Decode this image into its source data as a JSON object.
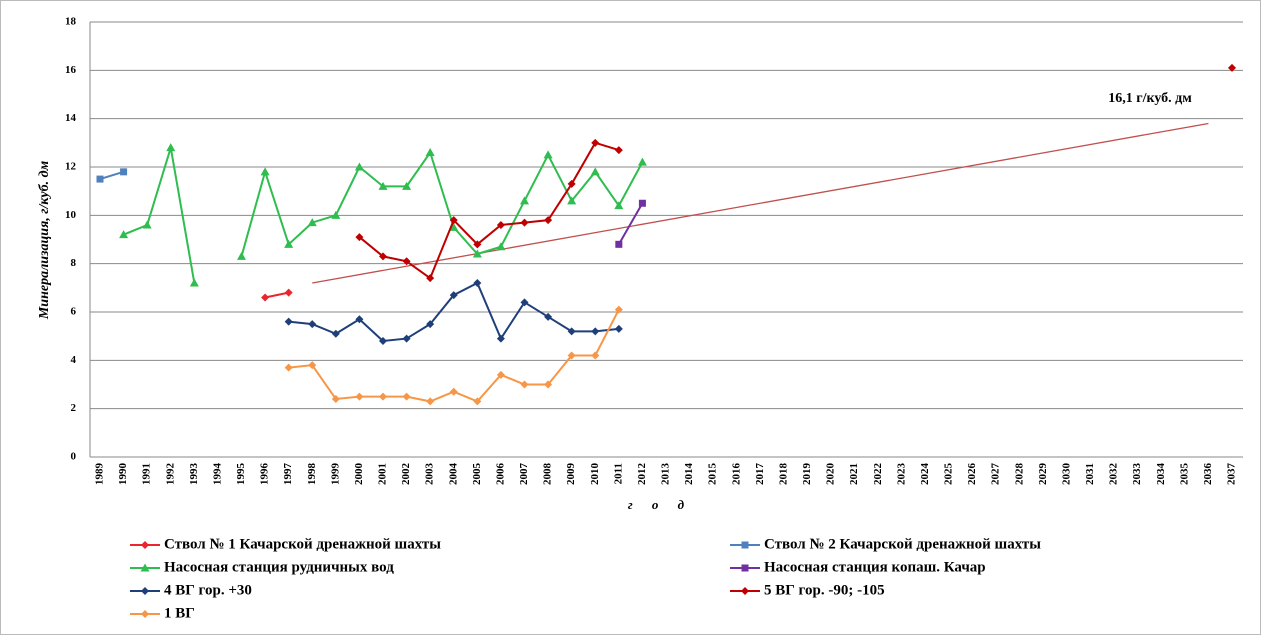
{
  "chart_data": {
    "type": "line",
    "y_label": "Минерализация, г/куб. дм",
    "x_label": "г о д",
    "annotation": "16,1 г/куб. дм",
    "categories": [
      "1989",
      "1990",
      "1991",
      "1992",
      "1993",
      "1994",
      "1995",
      "1996",
      "1997",
      "1998",
      "1999",
      "2000",
      "2001",
      "2002",
      "2003",
      "2004",
      "2005",
      "2006",
      "2007",
      "2008",
      "2009",
      "2010",
      "2011",
      "2012",
      "2013",
      "2014",
      "2015",
      "2016",
      "2017",
      "2018",
      "2019",
      "2020",
      "2021",
      "2022",
      "2023",
      "2024",
      "2025",
      "2026",
      "2027",
      "2028",
      "2029",
      "2030",
      "2031",
      "2032",
      "2033",
      "2034",
      "2035",
      "2036",
      "2037"
    ],
    "ylim": [
      0,
      18
    ],
    "yticks": [
      0,
      2,
      4,
      6,
      8,
      10,
      12,
      14,
      16,
      18
    ],
    "grid": true,
    "legend": "bottom",
    "series": [
      {
        "name": "Ствол № 1 Качарской дренажной шахты",
        "color": "#e8262b",
        "marker": "diamond",
        "values": [
          null,
          null,
          null,
          null,
          null,
          null,
          null,
          6.6,
          6.8,
          null,
          null,
          null,
          null,
          null,
          null,
          null,
          null,
          null,
          null,
          null,
          null,
          null,
          null,
          null,
          null,
          null,
          null,
          null,
          null,
          null,
          null,
          null,
          null,
          null,
          null,
          null,
          null,
          null,
          null,
          null,
          null,
          null,
          null,
          null,
          null,
          null,
          null,
          null,
          null
        ]
      },
      {
        "name": "Ствол № 2 Качарской дренажной шахты",
        "color": "#4f81bd",
        "marker": "square",
        "values": [
          11.5,
          11.8,
          null,
          null,
          null,
          null,
          null,
          null,
          null,
          null,
          null,
          null,
          null,
          null,
          null,
          null,
          null,
          null,
          null,
          null,
          null,
          null,
          null,
          null,
          null,
          null,
          null,
          null,
          null,
          null,
          null,
          null,
          null,
          null,
          null,
          null,
          null,
          null,
          null,
          null,
          null,
          null,
          null,
          null,
          null,
          null,
          null,
          null,
          null
        ]
      },
      {
        "name": "Насосная станция рудничных вод",
        "color": "#2ebd4e",
        "marker": "triangle",
        "values": [
          null,
          9.2,
          9.6,
          12.8,
          7.2,
          null,
          8.3,
          11.8,
          8.8,
          9.7,
          10.0,
          12.0,
          11.2,
          11.2,
          12.6,
          9.5,
          8.4,
          8.7,
          10.6,
          12.5,
          10.6,
          11.8,
          10.4,
          12.2,
          null,
          null,
          null,
          null,
          null,
          null,
          null,
          null,
          null,
          null,
          null,
          null,
          null,
          null,
          null,
          null,
          null,
          null,
          null,
          null,
          null,
          null,
          null,
          null,
          null
        ]
      },
      {
        "name": "Насосная станция копаш. Качар",
        "color": "#7030a0",
        "marker": "square",
        "values": [
          null,
          null,
          null,
          null,
          null,
          null,
          null,
          null,
          null,
          null,
          null,
          null,
          null,
          null,
          null,
          null,
          null,
          null,
          null,
          null,
          null,
          null,
          8.8,
          10.5,
          null,
          null,
          null,
          null,
          null,
          null,
          null,
          null,
          null,
          null,
          null,
          null,
          null,
          null,
          null,
          null,
          null,
          null,
          null,
          null,
          null,
          null,
          null,
          null,
          null
        ]
      },
      {
        "name": "4 ВГ гор. +30",
        "color": "#1f3f7a",
        "marker": "diamond",
        "values": [
          null,
          null,
          null,
          null,
          null,
          null,
          null,
          null,
          5.6,
          5.5,
          5.1,
          5.7,
          4.8,
          4.9,
          5.5,
          6.7,
          7.2,
          4.9,
          6.4,
          5.8,
          5.2,
          5.2,
          5.3,
          null,
          null,
          null,
          null,
          null,
          null,
          null,
          null,
          null,
          null,
          null,
          null,
          null,
          null,
          null,
          null,
          null,
          null,
          null,
          null,
          null,
          null,
          null,
          null,
          null,
          null
        ]
      },
      {
        "name": "5 ВГ гор. -90; -105",
        "color": "#c00000",
        "marker": "diamond",
        "values": [
          null,
          null,
          null,
          null,
          null,
          null,
          null,
          null,
          null,
          null,
          null,
          9.1,
          8.3,
          8.1,
          7.4,
          9.8,
          8.8,
          9.6,
          9.7,
          9.8,
          11.3,
          13.0,
          12.7,
          null,
          null,
          null,
          null,
          null,
          null,
          null,
          null,
          null,
          null,
          null,
          null,
          null,
          null,
          null,
          null,
          null,
          null,
          null,
          null,
          null,
          null,
          null,
          null,
          null,
          16.1
        ]
      },
      {
        "name": "1 ВГ",
        "color": "#f79646",
        "marker": "diamond",
        "values": [
          null,
          null,
          null,
          null,
          null,
          null,
          null,
          null,
          3.7,
          3.8,
          2.4,
          2.5,
          2.5,
          2.5,
          2.3,
          2.7,
          2.3,
          3.4,
          3.0,
          3.0,
          4.2,
          4.2,
          6.1,
          null,
          null,
          null,
          null,
          null,
          null,
          null,
          null,
          null,
          null,
          null,
          null,
          null,
          null,
          null,
          null,
          null,
          null,
          null,
          null,
          null,
          null,
          null,
          null,
          null,
          null
        ]
      }
    ],
    "trendline": {
      "color": "#c0504d",
      "values": [
        null,
        null,
        null,
        null,
        null,
        null,
        null,
        null,
        null,
        7.2,
        null,
        null,
        null,
        null,
        null,
        null,
        null,
        null,
        null,
        null,
        null,
        null,
        null,
        null,
        null,
        null,
        null,
        null,
        null,
        null,
        null,
        null,
        null,
        null,
        null,
        null,
        null,
        null,
        null,
        null,
        null,
        null,
        null,
        null,
        null,
        null,
        null,
        13.8,
        null
      ]
    }
  }
}
